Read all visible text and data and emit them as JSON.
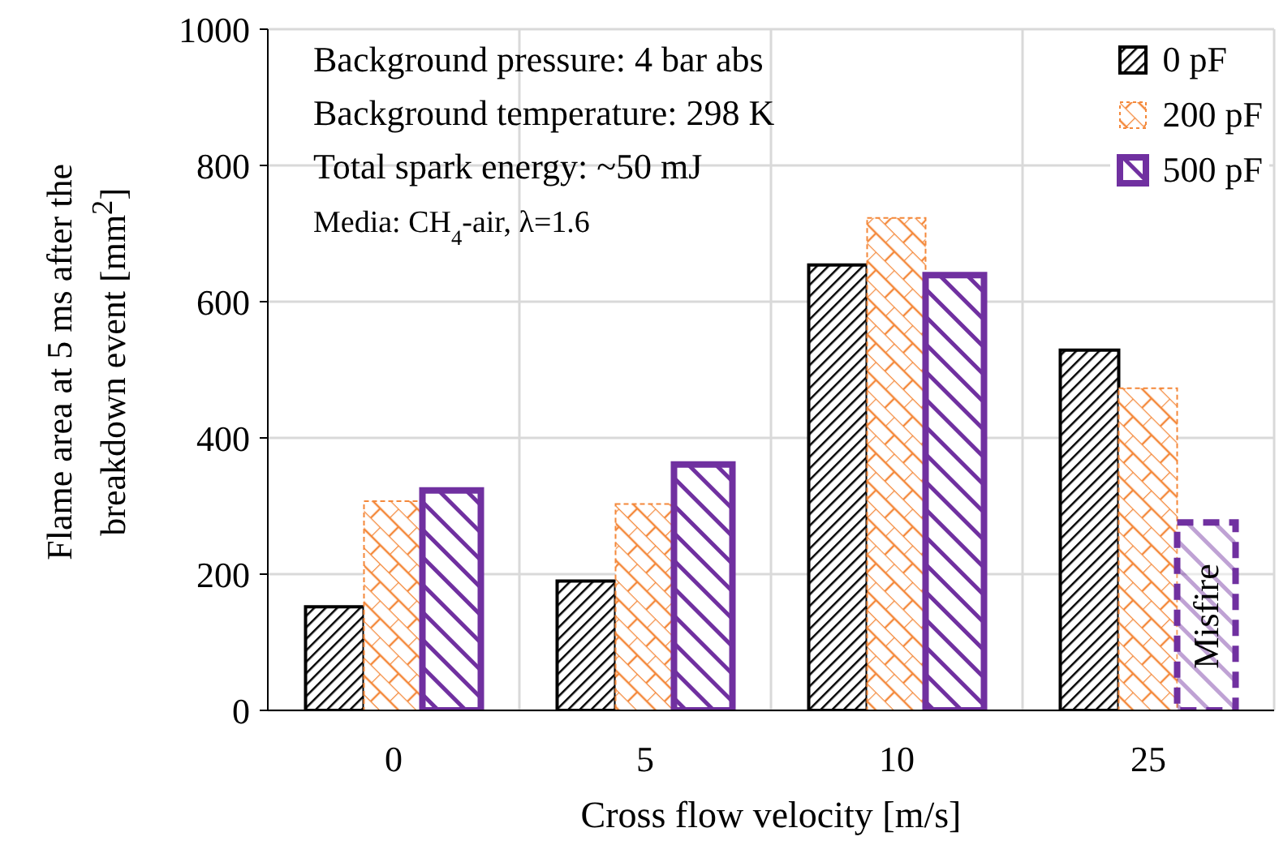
{
  "chart_data": {
    "type": "bar",
    "xlabel": "Cross flow velocity [m/s]",
    "ylabel": "Flame area at 5 ms after the breakdown event  [mm$^{2}$]",
    "categories": [
      "0",
      "5",
      "10",
      "25"
    ],
    "series": [
      {
        "name": "0 pF",
        "color": "#000000",
        "values": [
          152,
          190,
          654,
          529
        ]
      },
      {
        "name": "200 pF",
        "color": "#f4883a",
        "values": [
          307,
          303,
          723,
          473
        ]
      },
      {
        "name": "500 pF",
        "color": "#7030a0",
        "values": [
          323,
          361,
          639,
          276
        ]
      }
    ],
    "ylim": [
      0,
      1000
    ],
    "yticks": [
      0,
      200,
      400,
      600,
      800,
      1000
    ],
    "grid": true,
    "legend": "top right",
    "annotations": [
      "Background  pressure: 4 bar abs",
      "Background  temperature: 298 K",
      "Total spark energy: ~50 mJ",
      "Media: CH$_{4}$-air, λ=1.6",
      "Misfire"
    ]
  }
}
